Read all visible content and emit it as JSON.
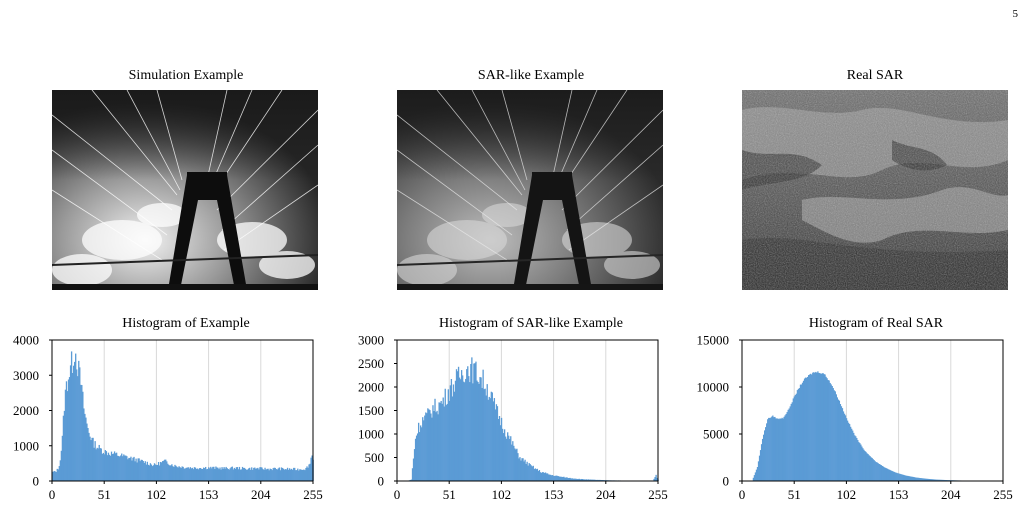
{
  "page": {
    "number": "5"
  },
  "panels": [
    {
      "title": "Simulation Example"
    },
    {
      "title": "SAR-like Example"
    },
    {
      "title": "Real SAR"
    }
  ],
  "colors": {
    "histogram_fill": "#5b9bd5",
    "grid": "#d9d9d9",
    "axis": "#000000"
  },
  "chart_data": [
    {
      "type": "area",
      "title": "Histogram of Example",
      "xlabel": "",
      "ylabel": "",
      "xlim": [
        0,
        255
      ],
      "ylim": [
        0,
        4000
      ],
      "xticks": [
        0,
        51,
        102,
        153,
        204,
        255
      ],
      "yticks": [
        0,
        1000,
        2000,
        3000,
        4000
      ],
      "grid": "vertical",
      "series": [
        {
          "x": [
            0,
            2,
            4,
            6,
            8,
            10,
            12,
            14,
            16,
            18,
            20,
            22,
            24,
            26,
            28,
            30,
            32,
            34,
            36,
            38,
            40,
            45,
            50,
            55,
            60,
            70,
            80,
            90,
            100,
            105,
            110,
            120,
            130,
            140,
            150,
            160,
            170,
            180,
            190,
            200,
            210,
            220,
            230,
            240,
            248,
            252,
            254,
            255
          ],
          "y": [
            250,
            260,
            280,
            350,
            600,
            1200,
            2200,
            2700,
            3000,
            3200,
            3400,
            3750,
            3500,
            3100,
            2800,
            2300,
            1900,
            1600,
            1400,
            1250,
            1100,
            950,
            850,
            800,
            770,
            700,
            620,
            540,
            450,
            500,
            560,
            430,
            390,
            370,
            380,
            370,
            360,
            370,
            350,
            360,
            340,
            350,
            340,
            330,
            350,
            500,
            800,
            600
          ]
        }
      ]
    },
    {
      "type": "area",
      "title": "Histogram of SAR-like Example",
      "xlabel": "",
      "ylabel": "",
      "xlim": [
        0,
        255
      ],
      "ylim": [
        0,
        3000
      ],
      "xticks": [
        0,
        51,
        102,
        153,
        204,
        255
      ],
      "yticks": [
        0,
        500,
        1000,
        1500,
        2000,
        2500,
        3000
      ],
      "grid": "vertical",
      "series": [
        {
          "x": [
            0,
            10,
            14,
            16,
            18,
            20,
            25,
            30,
            35,
            40,
            45,
            50,
            55,
            60,
            65,
            70,
            75,
            80,
            85,
            90,
            95,
            100,
            105,
            110,
            115,
            120,
            130,
            140,
            150,
            160,
            170,
            180,
            190,
            200,
            210,
            220,
            230,
            240,
            250,
            253,
            255
          ],
          "y": [
            0,
            0,
            30,
            500,
            900,
            1100,
            1300,
            1400,
            1550,
            1600,
            1700,
            1900,
            2050,
            2200,
            2350,
            2400,
            2350,
            2250,
            2100,
            1900,
            1600,
            1350,
            1100,
            900,
            700,
            500,
            330,
            200,
            130,
            90,
            60,
            40,
            28,
            20,
            14,
            10,
            8,
            6,
            5,
            120,
            30
          ]
        }
      ]
    },
    {
      "type": "area",
      "title": "Histogram of Real SAR",
      "xlabel": "",
      "ylabel": "",
      "xlim": [
        0,
        255
      ],
      "ylim": [
        0,
        15000
      ],
      "xticks": [
        0,
        51,
        102,
        153,
        204,
        255
      ],
      "yticks": [
        0,
        5000,
        10000,
        15000
      ],
      "grid": "vertical",
      "series": [
        {
          "x": [
            0,
            10,
            15,
            20,
            25,
            30,
            35,
            40,
            45,
            50,
            55,
            60,
            65,
            70,
            75,
            80,
            85,
            90,
            95,
            100,
            105,
            110,
            115,
            120,
            130,
            140,
            150,
            160,
            170,
            180,
            190,
            200,
            210,
            220,
            230,
            240,
            250,
            255
          ],
          "y": [
            0,
            50,
            1500,
            4500,
            6600,
            6900,
            6600,
            6700,
            7500,
            8700,
            9800,
            10700,
            11200,
            11550,
            11600,
            11400,
            10700,
            9700,
            8500,
            7200,
            6000,
            4900,
            4000,
            3200,
            2100,
            1400,
            900,
            580,
            370,
            240,
            150,
            100,
            65,
            40,
            25,
            15,
            8,
            5
          ]
        }
      ]
    }
  ]
}
